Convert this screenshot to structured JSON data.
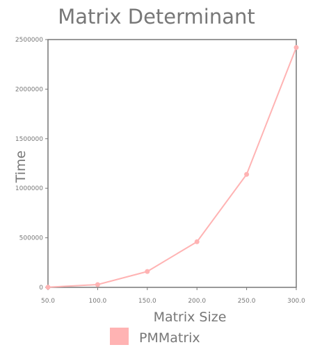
{
  "chart_data": {
    "type": "line",
    "title": "Matrix Determinant",
    "xlabel": "Matrix Size",
    "ylabel": "Time",
    "x": [
      50,
      100,
      150,
      200,
      250,
      300
    ],
    "x_tick_labels": [
      "50.0",
      "100.0",
      "150.0",
      "200.0",
      "250.0",
      "300.0"
    ],
    "y_tick_values": [
      0,
      500000,
      1000000,
      1500000,
      2000000,
      2500000
    ],
    "y_tick_labels": [
      "0",
      "500000",
      "1000000",
      "1500000",
      "2000000",
      "2500000"
    ],
    "xlim": [
      50,
      300
    ],
    "ylim": [
      0,
      2500000
    ],
    "grid": false,
    "legend_position": "bottom",
    "series": [
      {
        "name": "PMMatrix",
        "color": "#ffb3b3",
        "values": [
          2000,
          28000,
          160000,
          460000,
          1140000,
          2420000
        ]
      }
    ]
  }
}
